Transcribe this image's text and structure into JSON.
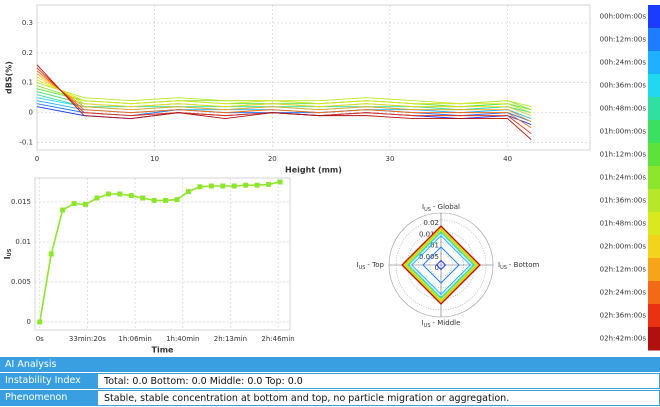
{
  "chart_data": [
    {
      "type": "line",
      "ylabel": "dBS(%)",
      "xlabel": "Height (mm)",
      "xlim": [
        0,
        47
      ],
      "ylim": [
        -0.125,
        0.36
      ],
      "xticks": [
        0,
        10,
        20,
        30,
        40
      ],
      "yticks": [
        -0.1,
        0,
        0.1,
        0.2,
        0.3
      ],
      "grid": true,
      "legend": "right",
      "x": [
        0,
        4,
        8,
        12,
        16,
        20,
        24,
        28,
        32,
        36,
        40,
        42
      ],
      "series": [
        {
          "name": "00h:00m:00s",
          "color": "#1a3cff",
          "values": [
            0.02,
            -0.01,
            -0.02,
            0.0,
            -0.01,
            0.0,
            -0.01,
            0.0,
            -0.01,
            -0.02,
            -0.01,
            -0.04
          ]
        },
        {
          "name": "00h:12m:00s",
          "color": "#1e7cff",
          "values": [
            0.03,
            0.0,
            -0.01,
            0.01,
            0.0,
            0.0,
            0.0,
            0.01,
            0.0,
            -0.01,
            0.0,
            -0.03
          ]
        },
        {
          "name": "00h:24m:00s",
          "color": "#1fb0ff",
          "values": [
            0.04,
            0.01,
            0.0,
            0.01,
            0.01,
            0.01,
            0.0,
            0.01,
            0.01,
            0.0,
            0.01,
            -0.02
          ]
        },
        {
          "name": "00h:36m:00s",
          "color": "#22d8f0",
          "values": [
            0.05,
            0.02,
            0.01,
            0.02,
            0.01,
            0.02,
            0.01,
            0.02,
            0.01,
            0.01,
            0.02,
            -0.01
          ]
        },
        {
          "name": "00h:48m:00s",
          "color": "#2fe0a0",
          "values": [
            0.06,
            0.02,
            0.02,
            0.02,
            0.02,
            0.02,
            0.02,
            0.02,
            0.02,
            0.01,
            0.02,
            0.0
          ]
        },
        {
          "name": "01h:00m:00s",
          "color": "#3ce060",
          "values": [
            0.07,
            0.03,
            0.02,
            0.03,
            0.02,
            0.03,
            0.02,
            0.03,
            0.02,
            0.02,
            0.03,
            0.0
          ]
        },
        {
          "name": "01h:12m:00s",
          "color": "#5de23a",
          "values": [
            0.08,
            0.04,
            0.03,
            0.04,
            0.03,
            0.03,
            0.03,
            0.04,
            0.03,
            0.02,
            0.03,
            0.01
          ]
        },
        {
          "name": "01h:24m:00s",
          "color": "#8ee62c",
          "values": [
            0.09,
            0.04,
            0.03,
            0.04,
            0.04,
            0.04,
            0.03,
            0.04,
            0.03,
            0.03,
            0.04,
            0.01
          ]
        },
        {
          "name": "01h:36m:00s",
          "color": "#b6e829",
          "values": [
            0.1,
            0.05,
            0.04,
            0.05,
            0.04,
            0.04,
            0.04,
            0.05,
            0.04,
            0.03,
            0.04,
            0.02
          ]
        },
        {
          "name": "01h:48m:00s",
          "color": "#dae820",
          "values": [
            0.11,
            0.04,
            0.03,
            0.04,
            0.03,
            0.04,
            0.03,
            0.04,
            0.03,
            0.03,
            0.03,
            0.0
          ]
        },
        {
          "name": "02h:00m:00s",
          "color": "#f2d41c",
          "values": [
            0.12,
            0.03,
            0.02,
            0.03,
            0.02,
            0.03,
            0.02,
            0.03,
            0.02,
            0.02,
            0.02,
            -0.01
          ]
        },
        {
          "name": "02h:12m:00s",
          "color": "#f6a51a",
          "values": [
            0.13,
            0.02,
            0.01,
            0.02,
            0.01,
            0.02,
            0.01,
            0.02,
            0.01,
            0.01,
            0.01,
            -0.03
          ]
        },
        {
          "name": "02h:24m:00s",
          "color": "#f26a16",
          "values": [
            0.14,
            0.01,
            0.0,
            0.01,
            0.0,
            0.01,
            0.0,
            0.01,
            0.0,
            0.0,
            0.0,
            -0.05
          ]
        },
        {
          "name": "02h:36m:00s",
          "color": "#e83212",
          "values": [
            0.15,
            0.0,
            -0.01,
            0.0,
            -0.01,
            0.0,
            -0.01,
            0.0,
            -0.01,
            -0.01,
            -0.01,
            -0.07
          ]
        },
        {
          "name": "02h:42m:00s",
          "color": "#b0100e",
          "values": [
            0.16,
            -0.01,
            -0.02,
            0.0,
            -0.02,
            0.0,
            -0.01,
            -0.01,
            -0.02,
            -0.02,
            -0.02,
            -0.09
          ]
        }
      ]
    },
    {
      "type": "line",
      "marker": "square",
      "xlabel": "Time",
      "ylabel": {
        "symbol": "I",
        "subscript": "US"
      },
      "xlim": [
        -200,
        10500
      ],
      "ylim": [
        -0.001,
        0.018
      ],
      "grid": true,
      "xticks": [
        {
          "value": 0,
          "label": "0s"
        },
        {
          "value": 2000,
          "label": "33min:20s"
        },
        {
          "value": 4000,
          "label": "1h:06min"
        },
        {
          "value": 6000,
          "label": "1h:40min"
        },
        {
          "value": 8000,
          "label": "2h:13min"
        },
        {
          "value": 10000,
          "label": "2h:46min"
        }
      ],
      "yticks": [
        0,
        0.005,
        0.01,
        0.015
      ],
      "x": [
        0,
        480,
        960,
        1440,
        1920,
        2400,
        2880,
        3360,
        3840,
        4320,
        4800,
        5280,
        5760,
        6240,
        6720,
        7200,
        7680,
        8160,
        8640,
        9120,
        9600,
        10080
      ],
      "series": [
        {
          "color": "#8ee62c",
          "values": [
            0,
            0.0085,
            0.014,
            0.0148,
            0.0147,
            0.0155,
            0.016,
            0.016,
            0.0158,
            0.0155,
            0.0152,
            0.0152,
            0.0153,
            0.0163,
            0.0169,
            0.017,
            0.017,
            0.017,
            0.0171,
            0.0171,
            0.0172,
            0.0175
          ]
        }
      ]
    },
    {
      "type": "radar",
      "rlim": [
        0,
        0.02
      ],
      "rticks": [
        0,
        0.005,
        0.01,
        0.015,
        0.02
      ],
      "categories": [
        {
          "symbol": "I",
          "subscript": "US",
          "name": "- Global"
        },
        {
          "symbol": "I",
          "subscript": "US",
          "name": "- Bottom"
        },
        {
          "symbol": "I",
          "subscript": "US",
          "name": "- Middle"
        },
        {
          "symbol": "I",
          "subscript": "US",
          "name": "- Top"
        }
      ],
      "series": [
        {
          "color": "#1a3cff",
          "values": [
            0.002,
            0.002,
            0.002,
            0.002
          ]
        },
        {
          "color": "#1e7cff",
          "values": [
            0.008,
            0.008,
            0.008,
            0.008
          ]
        },
        {
          "color": "#1fb0ff",
          "values": [
            0.013,
            0.013,
            0.013,
            0.013
          ]
        },
        {
          "color": "#22d8f0",
          "values": [
            0.0145,
            0.0145,
            0.0145,
            0.0145
          ]
        },
        {
          "color": "#2fe0a0",
          "values": [
            0.015,
            0.015,
            0.015,
            0.015
          ]
        },
        {
          "color": "#3ce060",
          "values": [
            0.0155,
            0.0155,
            0.0155,
            0.0155
          ]
        },
        {
          "color": "#5de23a",
          "values": [
            0.016,
            0.016,
            0.016,
            0.016
          ]
        },
        {
          "color": "#8ee62c",
          "values": [
            0.0158,
            0.0158,
            0.0158,
            0.0158
          ]
        },
        {
          "color": "#b6e829",
          "values": [
            0.0153,
            0.0153,
            0.0153,
            0.0153
          ]
        },
        {
          "color": "#dae820",
          "values": [
            0.0155,
            0.0155,
            0.0155,
            0.0155
          ]
        },
        {
          "color": "#f2d41c",
          "values": [
            0.0165,
            0.0165,
            0.0165,
            0.0165
          ]
        },
        {
          "color": "#f6a51a",
          "values": [
            0.017,
            0.017,
            0.017,
            0.017
          ]
        },
        {
          "color": "#f26a16",
          "values": [
            0.0172,
            0.0172,
            0.0172,
            0.0172
          ]
        },
        {
          "color": "#e83212",
          "values": [
            0.0172,
            0.0172,
            0.0172,
            0.0172
          ]
        },
        {
          "color": "#b0100e",
          "values": [
            0.0174,
            0.0174,
            0.0174,
            0.0174
          ]
        }
      ]
    }
  ],
  "analysis": {
    "title": "AI Analysis",
    "rows": [
      [
        "Instability Index",
        "Total: 0.0  Bottom: 0.0  Middle: 0.0  Top: 0.0"
      ],
      [
        "Phenomenon",
        "Stable, stable concentration at bottom and top, no particle migration or aggregation."
      ]
    ]
  }
}
